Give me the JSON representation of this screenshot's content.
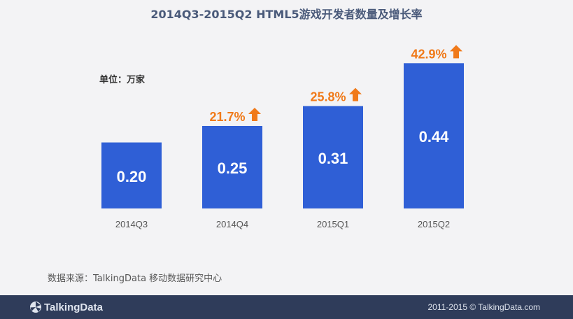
{
  "chart_data": {
    "type": "bar",
    "title": "2014Q3-2015Q2 HTML5游戏开发者数量及增长率",
    "unit_label": "单位：万家",
    "categories": [
      "2014Q3",
      "2014Q4",
      "2015Q1",
      "2015Q2"
    ],
    "values": [
      0.2,
      0.25,
      0.31,
      0.44
    ],
    "value_labels": [
      "0.20",
      "0.25",
      "0.31",
      "0.44"
    ],
    "growth_labels": [
      "",
      "21.7%",
      "25.8%",
      "42.9%"
    ],
    "xlabel": "",
    "ylabel": "",
    "ylim": [
      0,
      0.5
    ],
    "bar_color": "#2f5fd6",
    "growth_color": "#f07a1a",
    "value_label_color": "#ffffff"
  },
  "source": "数据来源：TalkingData 移动数据研究中心",
  "footer": {
    "logo_text": "TalkingData",
    "copyright": "2011-2015 © TalkingData.com",
    "background": "#2f3c5a"
  }
}
